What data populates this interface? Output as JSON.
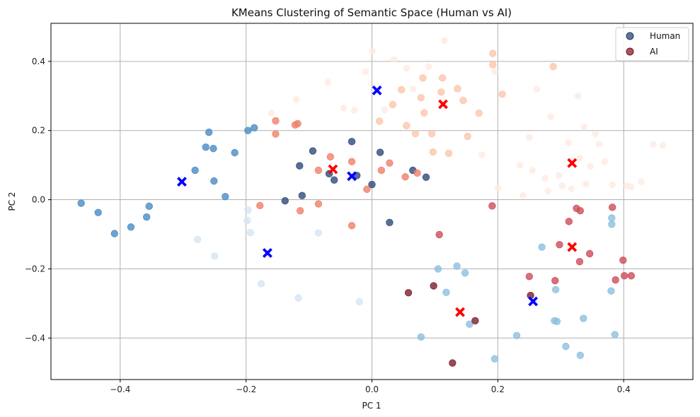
{
  "chart_data": {
    "type": "scatter",
    "title": "KMeans Clustering of Semantic Space (Human vs AI)",
    "xlabel": "PC 1",
    "ylabel": "PC 2",
    "xlim": [
      -0.51,
      0.51
    ],
    "ylim": [
      -0.52,
      0.51
    ],
    "xticks": [
      -0.4,
      -0.2,
      0.0,
      0.2,
      0.4
    ],
    "yticks": [
      -0.4,
      -0.2,
      0.0,
      0.2,
      0.4
    ],
    "xtick_labels": [
      "−0.4",
      "−0.2",
      "0.0",
      "0.2",
      "0.4"
    ],
    "ytick_labels": [
      "−0.4",
      "−0.2",
      "0.0",
      "0.2",
      "0.4"
    ],
    "grid": true,
    "legend_position": "top-right",
    "legend": [
      {
        "label": "Human",
        "color": "#1f3a6b"
      },
      {
        "label": "AI",
        "color": "#7a0f1e"
      }
    ],
    "series": [
      {
        "name": "Human",
        "points": [
          {
            "x": -0.462,
            "y": -0.01,
            "c": "#4a8bc4"
          },
          {
            "x": -0.435,
            "y": -0.037,
            "c": "#4a8bc4"
          },
          {
            "x": -0.409,
            "y": -0.098,
            "c": "#4a8bc4"
          },
          {
            "x": -0.383,
            "y": -0.079,
            "c": "#4a8bc4"
          },
          {
            "x": -0.358,
            "y": -0.05,
            "c": "#4a8bc4"
          },
          {
            "x": -0.354,
            "y": -0.019,
            "c": "#4a8bc4"
          },
          {
            "x": -0.281,
            "y": 0.085,
            "c": "#4a8bc4"
          },
          {
            "x": -0.264,
            "y": 0.152,
            "c": "#4a8bc4"
          },
          {
            "x": -0.259,
            "y": 0.195,
            "c": "#4a8bc4"
          },
          {
            "x": -0.252,
            "y": 0.148,
            "c": "#4a8bc4"
          },
          {
            "x": -0.251,
            "y": 0.054,
            "c": "#4a8bc4"
          },
          {
            "x": -0.233,
            "y": 0.009,
            "c": "#4a8bc4"
          },
          {
            "x": -0.218,
            "y": 0.136,
            "c": "#4a8bc4"
          },
          {
            "x": -0.197,
            "y": 0.2,
            "c": "#4a8bc4"
          },
          {
            "x": -0.187,
            "y": 0.208,
            "c": "#4a8bc4"
          },
          {
            "x": -0.197,
            "y": -0.03,
            "c": "#d6e6f4"
          },
          {
            "x": -0.198,
            "y": -0.06,
            "c": "#d6e6f4"
          },
          {
            "x": -0.193,
            "y": -0.095,
            "c": "#d6e6f4"
          },
          {
            "x": -0.277,
            "y": -0.115,
            "c": "#d6e6f4"
          },
          {
            "x": -0.25,
            "y": -0.163,
            "c": "#d6e6f4"
          },
          {
            "x": -0.176,
            "y": -0.243,
            "c": "#d6e6f4"
          },
          {
            "x": -0.117,
            "y": -0.284,
            "c": "#d6e6f4"
          },
          {
            "x": -0.085,
            "y": -0.096,
            "c": "#d6e6f4"
          },
          {
            "x": -0.02,
            "y": -0.295,
            "c": "#d6e6f4"
          },
          {
            "x": -0.138,
            "y": -0.003,
            "c": "#2e4a7a"
          },
          {
            "x": -0.111,
            "y": 0.012,
            "c": "#2e4a7a"
          },
          {
            "x": -0.115,
            "y": 0.098,
            "c": "#2e4a7a"
          },
          {
            "x": -0.094,
            "y": 0.141,
            "c": "#2e4a7a"
          },
          {
            "x": -0.068,
            "y": 0.075,
            "c": "#2e4a7a"
          },
          {
            "x": -0.06,
            "y": 0.057,
            "c": "#2e4a7a"
          },
          {
            "x": -0.032,
            "y": 0.168,
            "c": "#2e4a7a"
          },
          {
            "x": -0.024,
            "y": 0.07,
            "c": "#2e4a7a"
          },
          {
            "x": 0.0,
            "y": 0.044,
            "c": "#2e4a7a"
          },
          {
            "x": 0.013,
            "y": 0.137,
            "c": "#2e4a7a"
          },
          {
            "x": 0.028,
            "y": -0.066,
            "c": "#2e4a7a"
          },
          {
            "x": 0.065,
            "y": 0.085,
            "c": "#2e4a7a"
          },
          {
            "x": 0.086,
            "y": 0.065,
            "c": "#2e4a7a"
          },
          {
            "x": 0.105,
            "y": -0.2,
            "c": "#8dbfde"
          },
          {
            "x": 0.118,
            "y": -0.268,
            "c": "#8dbfde"
          },
          {
            "x": 0.135,
            "y": -0.192,
            "c": "#8dbfde"
          },
          {
            "x": 0.148,
            "y": -0.212,
            "c": "#8dbfde"
          },
          {
            "x": 0.155,
            "y": -0.36,
            "c": "#8dbfde"
          },
          {
            "x": 0.078,
            "y": -0.397,
            "c": "#8dbfde"
          },
          {
            "x": 0.195,
            "y": -0.46,
            "c": "#8dbfde"
          },
          {
            "x": 0.23,
            "y": -0.393,
            "c": "#8dbfde"
          },
          {
            "x": 0.27,
            "y": -0.137,
            "c": "#8dbfde"
          },
          {
            "x": 0.292,
            "y": -0.26,
            "c": "#8dbfde"
          },
          {
            "x": 0.29,
            "y": -0.35,
            "c": "#8dbfde"
          },
          {
            "x": 0.294,
            "y": -0.352,
            "c": "#8dbfde"
          },
          {
            "x": 0.308,
            "y": -0.424,
            "c": "#8dbfde"
          },
          {
            "x": 0.331,
            "y": -0.45,
            "c": "#8dbfde"
          },
          {
            "x": 0.336,
            "y": -0.343,
            "c": "#8dbfde"
          },
          {
            "x": 0.381,
            "y": -0.053,
            "c": "#8dbfde"
          },
          {
            "x": 0.381,
            "y": -0.071,
            "c": "#8dbfde"
          },
          {
            "x": 0.38,
            "y": -0.264,
            "c": "#8dbfde"
          },
          {
            "x": 0.386,
            "y": -0.39,
            "c": "#8dbfde"
          }
        ]
      },
      {
        "name": "AI",
        "points": [
          {
            "x": -0.178,
            "y": -0.017,
            "c": "#f0806a"
          },
          {
            "x": -0.153,
            "y": 0.228,
            "c": "#f0806a"
          },
          {
            "x": -0.153,
            "y": 0.19,
            "c": "#f0806a"
          },
          {
            "x": -0.118,
            "y": 0.22,
            "c": "#f0806a"
          },
          {
            "x": -0.122,
            "y": 0.216,
            "c": "#f0806a"
          },
          {
            "x": -0.114,
            "y": -0.032,
            "c": "#f0806a"
          },
          {
            "x": -0.085,
            "y": 0.085,
            "c": "#f0806a"
          },
          {
            "x": -0.085,
            "y": -0.012,
            "c": "#f0806a"
          },
          {
            "x": -0.066,
            "y": 0.124,
            "c": "#f0806a"
          },
          {
            "x": -0.032,
            "y": 0.11,
            "c": "#f0806a"
          },
          {
            "x": -0.032,
            "y": -0.075,
            "c": "#f0806a"
          },
          {
            "x": -0.008,
            "y": 0.03,
            "c": "#f0806a"
          },
          {
            "x": 0.015,
            "y": 0.085,
            "c": "#f0806a"
          },
          {
            "x": 0.028,
            "y": 0.106,
            "c": "#f0806a"
          },
          {
            "x": 0.053,
            "y": 0.066,
            "c": "#f0806a"
          },
          {
            "x": 0.072,
            "y": 0.077,
            "c": "#f0806a"
          },
          {
            "x": 0.081,
            "y": 0.352,
            "c": "#fcc5ab"
          },
          {
            "x": 0.112,
            "y": 0.352,
            "c": "#fcc5ab"
          },
          {
            "x": 0.11,
            "y": 0.311,
            "c": "#fcc5ab"
          },
          {
            "x": 0.047,
            "y": 0.318,
            "c": "#fcc5ab"
          },
          {
            "x": 0.078,
            "y": 0.295,
            "c": "#fcc5ab"
          },
          {
            "x": 0.095,
            "y": 0.191,
            "c": "#fcc5ab"
          },
          {
            "x": 0.083,
            "y": 0.251,
            "c": "#fcc5ab"
          },
          {
            "x": 0.033,
            "y": 0.275,
            "c": "#fcc5ab"
          },
          {
            "x": 0.012,
            "y": 0.227,
            "c": "#fcc5ab"
          },
          {
            "x": 0.055,
            "y": 0.214,
            "c": "#fcc5ab"
          },
          {
            "x": 0.069,
            "y": 0.191,
            "c": "#fcc5ab"
          },
          {
            "x": 0.097,
            "y": 0.138,
            "c": "#fcc5ab"
          },
          {
            "x": 0.122,
            "y": 0.134,
            "c": "#fcc5ab"
          },
          {
            "x": 0.136,
            "y": 0.321,
            "c": "#fcc5ab"
          },
          {
            "x": 0.145,
            "y": 0.287,
            "c": "#fcc5ab"
          },
          {
            "x": 0.152,
            "y": 0.183,
            "c": "#fcc5ab"
          },
          {
            "x": 0.17,
            "y": 0.25,
            "c": "#fcc5ab"
          },
          {
            "x": 0.192,
            "y": 0.423,
            "c": "#fcc5ab"
          },
          {
            "x": 0.192,
            "y": 0.39,
            "c": "#fcc5ab"
          },
          {
            "x": 0.207,
            "y": 0.305,
            "c": "#fcc5ab"
          },
          {
            "x": 0.288,
            "y": 0.385,
            "c": "#fcc5ab"
          },
          {
            "x": 0.107,
            "y": -0.101,
            "c": "#cc4d5a"
          },
          {
            "x": 0.191,
            "y": -0.018,
            "c": "#cc4d5a"
          },
          {
            "x": 0.25,
            "y": -0.222,
            "c": "#cc4d5a"
          },
          {
            "x": 0.291,
            "y": -0.234,
            "c": "#cc4d5a"
          },
          {
            "x": 0.298,
            "y": -0.13,
            "c": "#cc4d5a"
          },
          {
            "x": 0.313,
            "y": -0.063,
            "c": "#cc4d5a"
          },
          {
            "x": 0.325,
            "y": -0.025,
            "c": "#cc4d5a"
          },
          {
            "x": 0.331,
            "y": -0.032,
            "c": "#cc4d5a"
          },
          {
            "x": 0.33,
            "y": -0.179,
            "c": "#cc4d5a"
          },
          {
            "x": 0.346,
            "y": -0.156,
            "c": "#cc4d5a"
          },
          {
            "x": 0.382,
            "y": -0.022,
            "c": "#cc4d5a"
          },
          {
            "x": 0.387,
            "y": -0.232,
            "c": "#cc4d5a"
          },
          {
            "x": 0.399,
            "y": -0.175,
            "c": "#cc4d5a"
          },
          {
            "x": 0.401,
            "y": -0.22,
            "c": "#cc4d5a"
          },
          {
            "x": 0.412,
            "y": -0.22,
            "c": "#cc4d5a"
          },
          {
            "x": 0.058,
            "y": -0.269,
            "c": "#7a1f2e"
          },
          {
            "x": 0.098,
            "y": -0.249,
            "c": "#7a1f2e"
          },
          {
            "x": 0.128,
            "y": -0.472,
            "c": "#7a1f2e"
          },
          {
            "x": 0.164,
            "y": -0.35,
            "c": "#7a1f2e"
          },
          {
            "x": 0.252,
            "y": -0.277,
            "c": "#7a1f2e"
          }
        ]
      }
    ],
    "faint_points": [
      {
        "x": -0.16,
        "y": 0.25
      },
      {
        "x": -0.12,
        "y": 0.29
      },
      {
        "x": -0.07,
        "y": 0.34
      },
      {
        "x": -0.045,
        "y": 0.265
      },
      {
        "x": -0.01,
        "y": 0.37
      },
      {
        "x": 0.02,
        "y": 0.26
      },
      {
        "x": 0.035,
        "y": 0.405
      },
      {
        "x": 0.055,
        "y": 0.38
      },
      {
        "x": 0.065,
        "y": 0.32
      },
      {
        "x": 0.09,
        "y": 0.385
      },
      {
        "x": 0.115,
        "y": 0.46
      },
      {
        "x": 0.175,
        "y": 0.13
      },
      {
        "x": 0.195,
        "y": 0.37
      },
      {
        "x": 0.2,
        "y": 0.035
      },
      {
        "x": 0.235,
        "y": 0.1
      },
      {
        "x": 0.24,
        "y": 0.012
      },
      {
        "x": 0.25,
        "y": 0.18
      },
      {
        "x": 0.255,
        "y": 0.085
      },
      {
        "x": 0.262,
        "y": 0.32
      },
      {
        "x": 0.275,
        "y": 0.062
      },
      {
        "x": 0.28,
        "y": 0.025
      },
      {
        "x": 0.284,
        "y": 0.24
      },
      {
        "x": 0.297,
        "y": 0.07
      },
      {
        "x": 0.302,
        "y": 0.04
      },
      {
        "x": 0.312,
        "y": 0.165
      },
      {
        "x": 0.317,
        "y": 0.032
      },
      {
        "x": 0.327,
        "y": 0.3
      },
      {
        "x": 0.33,
        "y": 0.12
      },
      {
        "x": 0.337,
        "y": 0.21
      },
      {
        "x": 0.34,
        "y": 0.045
      },
      {
        "x": 0.347,
        "y": 0.096
      },
      {
        "x": 0.355,
        "y": 0.19
      },
      {
        "x": 0.361,
        "y": 0.16
      },
      {
        "x": 0.37,
        "y": 0.11
      },
      {
        "x": 0.382,
        "y": 0.043
      },
      {
        "x": 0.405,
        "y": 0.04
      },
      {
        "x": 0.412,
        "y": 0.037
      },
      {
        "x": 0.428,
        "y": 0.052
      },
      {
        "x": 0.447,
        "y": 0.16
      },
      {
        "x": 0.462,
        "y": 0.157
      },
      {
        "x": -0.028,
        "y": 0.258
      },
      {
        "x": 0.001,
        "y": 0.43
      }
    ],
    "centroids": [
      {
        "series": "Human",
        "x": -0.302,
        "y": 0.052,
        "color": "#0000ff"
      },
      {
        "series": "Human",
        "x": -0.166,
        "y": -0.154,
        "color": "#0000ff"
      },
      {
        "series": "Human",
        "x": -0.032,
        "y": 0.068,
        "color": "#0000ff"
      },
      {
        "series": "Human",
        "x": 0.008,
        "y": 0.316,
        "color": "#0000ff"
      },
      {
        "series": "Human",
        "x": 0.256,
        "y": -0.294,
        "color": "#0000ff"
      },
      {
        "series": "AI",
        "x": -0.062,
        "y": 0.088,
        "color": "#ff0000"
      },
      {
        "series": "AI",
        "x": 0.113,
        "y": 0.276,
        "color": "#ff0000"
      },
      {
        "series": "AI",
        "x": 0.14,
        "y": -0.325,
        "color": "#ff0000"
      },
      {
        "series": "AI",
        "x": 0.318,
        "y": 0.106,
        "color": "#ff0000"
      },
      {
        "series": "AI",
        "x": 0.318,
        "y": -0.137,
        "color": "#ff0000"
      }
    ]
  }
}
